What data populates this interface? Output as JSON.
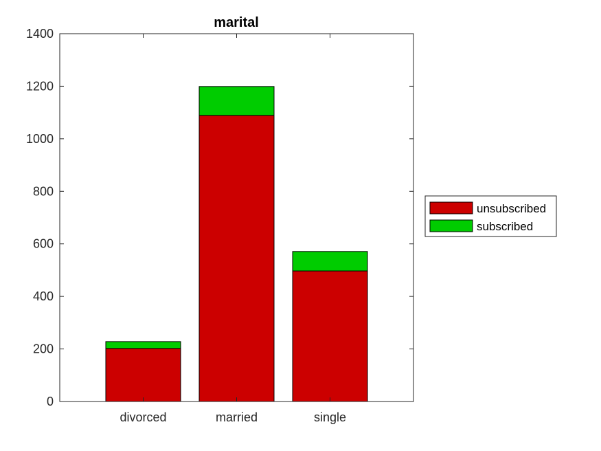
{
  "chart_data": {
    "type": "bar",
    "stacked": true,
    "title": "marital",
    "xlabel": "",
    "ylabel": "",
    "categories": [
      "divorced",
      "married",
      "single"
    ],
    "series": [
      {
        "name": "unsubscribed",
        "color": "#cc0000",
        "values": [
          202,
          1089,
          497
        ]
      },
      {
        "name": "subscribed",
        "color": "#00cc00",
        "values": [
          26,
          110,
          74
        ]
      }
    ],
    "ylim": [
      0,
      1400
    ],
    "yticks": [
      0,
      200,
      400,
      600,
      800,
      1000,
      1200,
      1400
    ],
    "ytick_labels": [
      "0",
      "200",
      "400",
      "600",
      "800",
      "1000",
      "1200",
      "1400"
    ],
    "grid": false,
    "legend_position": "outside-right"
  }
}
